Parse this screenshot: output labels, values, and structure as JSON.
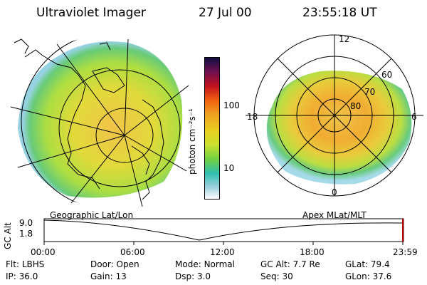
{
  "header": {
    "title": "Ultraviolet Imager",
    "date": "27 Jul 00",
    "time": "23:55:18 UT"
  },
  "colorbar": {
    "unit_label": "photon cm⁻²s⁻¹",
    "tick_labels": [
      "100",
      "10"
    ],
    "colors": [
      "#101040",
      "#701050",
      "#c01020",
      "#f06010",
      "#f0a020",
      "#e8d020",
      "#c8e030",
      "#70d040",
      "#30c0b0",
      "#a0d0e0",
      "#ffffff"
    ]
  },
  "polar_map": {
    "mlt_labels": [
      "12",
      "18",
      "6",
      "0"
    ],
    "lat_labels": [
      "60",
      "70",
      "80"
    ]
  },
  "captions": {
    "left_map": "Geographic Lat/Lon",
    "right_map": "Apex MLat/MLT"
  },
  "altitude_strip": {
    "axis_label": "GC Alt",
    "y_ticks": [
      "9.0",
      "1.8"
    ],
    "time_ticks": [
      "00:00",
      "06:00",
      "12:00",
      "18:00",
      "23:59"
    ],
    "marker_color": "#c00000"
  },
  "info": {
    "row1": [
      {
        "label": "Flt:",
        "value": "LBHS"
      },
      {
        "label": "Door:",
        "value": "Open"
      },
      {
        "label": "Mode:",
        "value": "Normal"
      },
      {
        "label": "GC Alt:",
        "value": "7.7 Re"
      },
      {
        "label": "GLat:",
        "value": "79.4"
      }
    ],
    "row2": [
      {
        "label": "IP:",
        "value": "36.0"
      },
      {
        "label": "Gain:",
        "value": "13"
      },
      {
        "label": "Dsp:",
        "value": "3.0"
      },
      {
        "label": "Seq:",
        "value": "30"
      },
      {
        "label": "GLon:",
        "value": "37.6"
      }
    ]
  }
}
